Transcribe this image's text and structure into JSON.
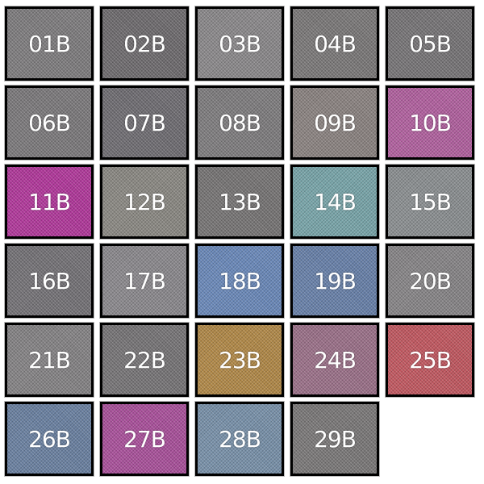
{
  "swatches": [
    {
      "label": "01B",
      "color": "#7e7c7e"
    },
    {
      "label": "02B",
      "color": "#6e6b6e"
    },
    {
      "label": "03B",
      "color": "#8a888a"
    },
    {
      "label": "04B",
      "color": "#7a7878"
    },
    {
      "label": "05B",
      "color": "#767476"
    },
    {
      "label": "06B",
      "color": "#7b797b"
    },
    {
      "label": "07B",
      "color": "#6f6d72"
    },
    {
      "label": "08B",
      "color": "#7e7c7e"
    },
    {
      "label": "09B",
      "color": "#8a8280"
    },
    {
      "label": "10B",
      "color": "#b0609e"
    },
    {
      "label": "11B",
      "color": "#b0389a"
    },
    {
      "label": "12B",
      "color": "#8a8882"
    },
    {
      "label": "13B",
      "color": "#767474"
    },
    {
      "label": "14B",
      "color": "#78a4a8"
    },
    {
      "label": "15B",
      "color": "#8a8e90"
    },
    {
      "label": "16B",
      "color": "#747276"
    },
    {
      "label": "17B",
      "color": "#8a888c"
    },
    {
      "label": "18B",
      "color": "#6a88b8"
    },
    {
      "label": "19B",
      "color": "#6880a8"
    },
    {
      "label": "20B",
      "color": "#868486"
    },
    {
      "label": "21B",
      "color": "#848284"
    },
    {
      "label": "22B",
      "color": "#767476"
    },
    {
      "label": "23B",
      "color": "#b08848"
    },
    {
      "label": "24B",
      "color": "#9a7088"
    },
    {
      "label": "25B",
      "color": "#c05860"
    },
    {
      "label": "26B",
      "color": "#6a80a0"
    },
    {
      "label": "27B",
      "color": "#a8509a"
    },
    {
      "label": "28B",
      "color": "#7890a8"
    },
    {
      "label": "29B",
      "color": "#7a7878"
    }
  ]
}
